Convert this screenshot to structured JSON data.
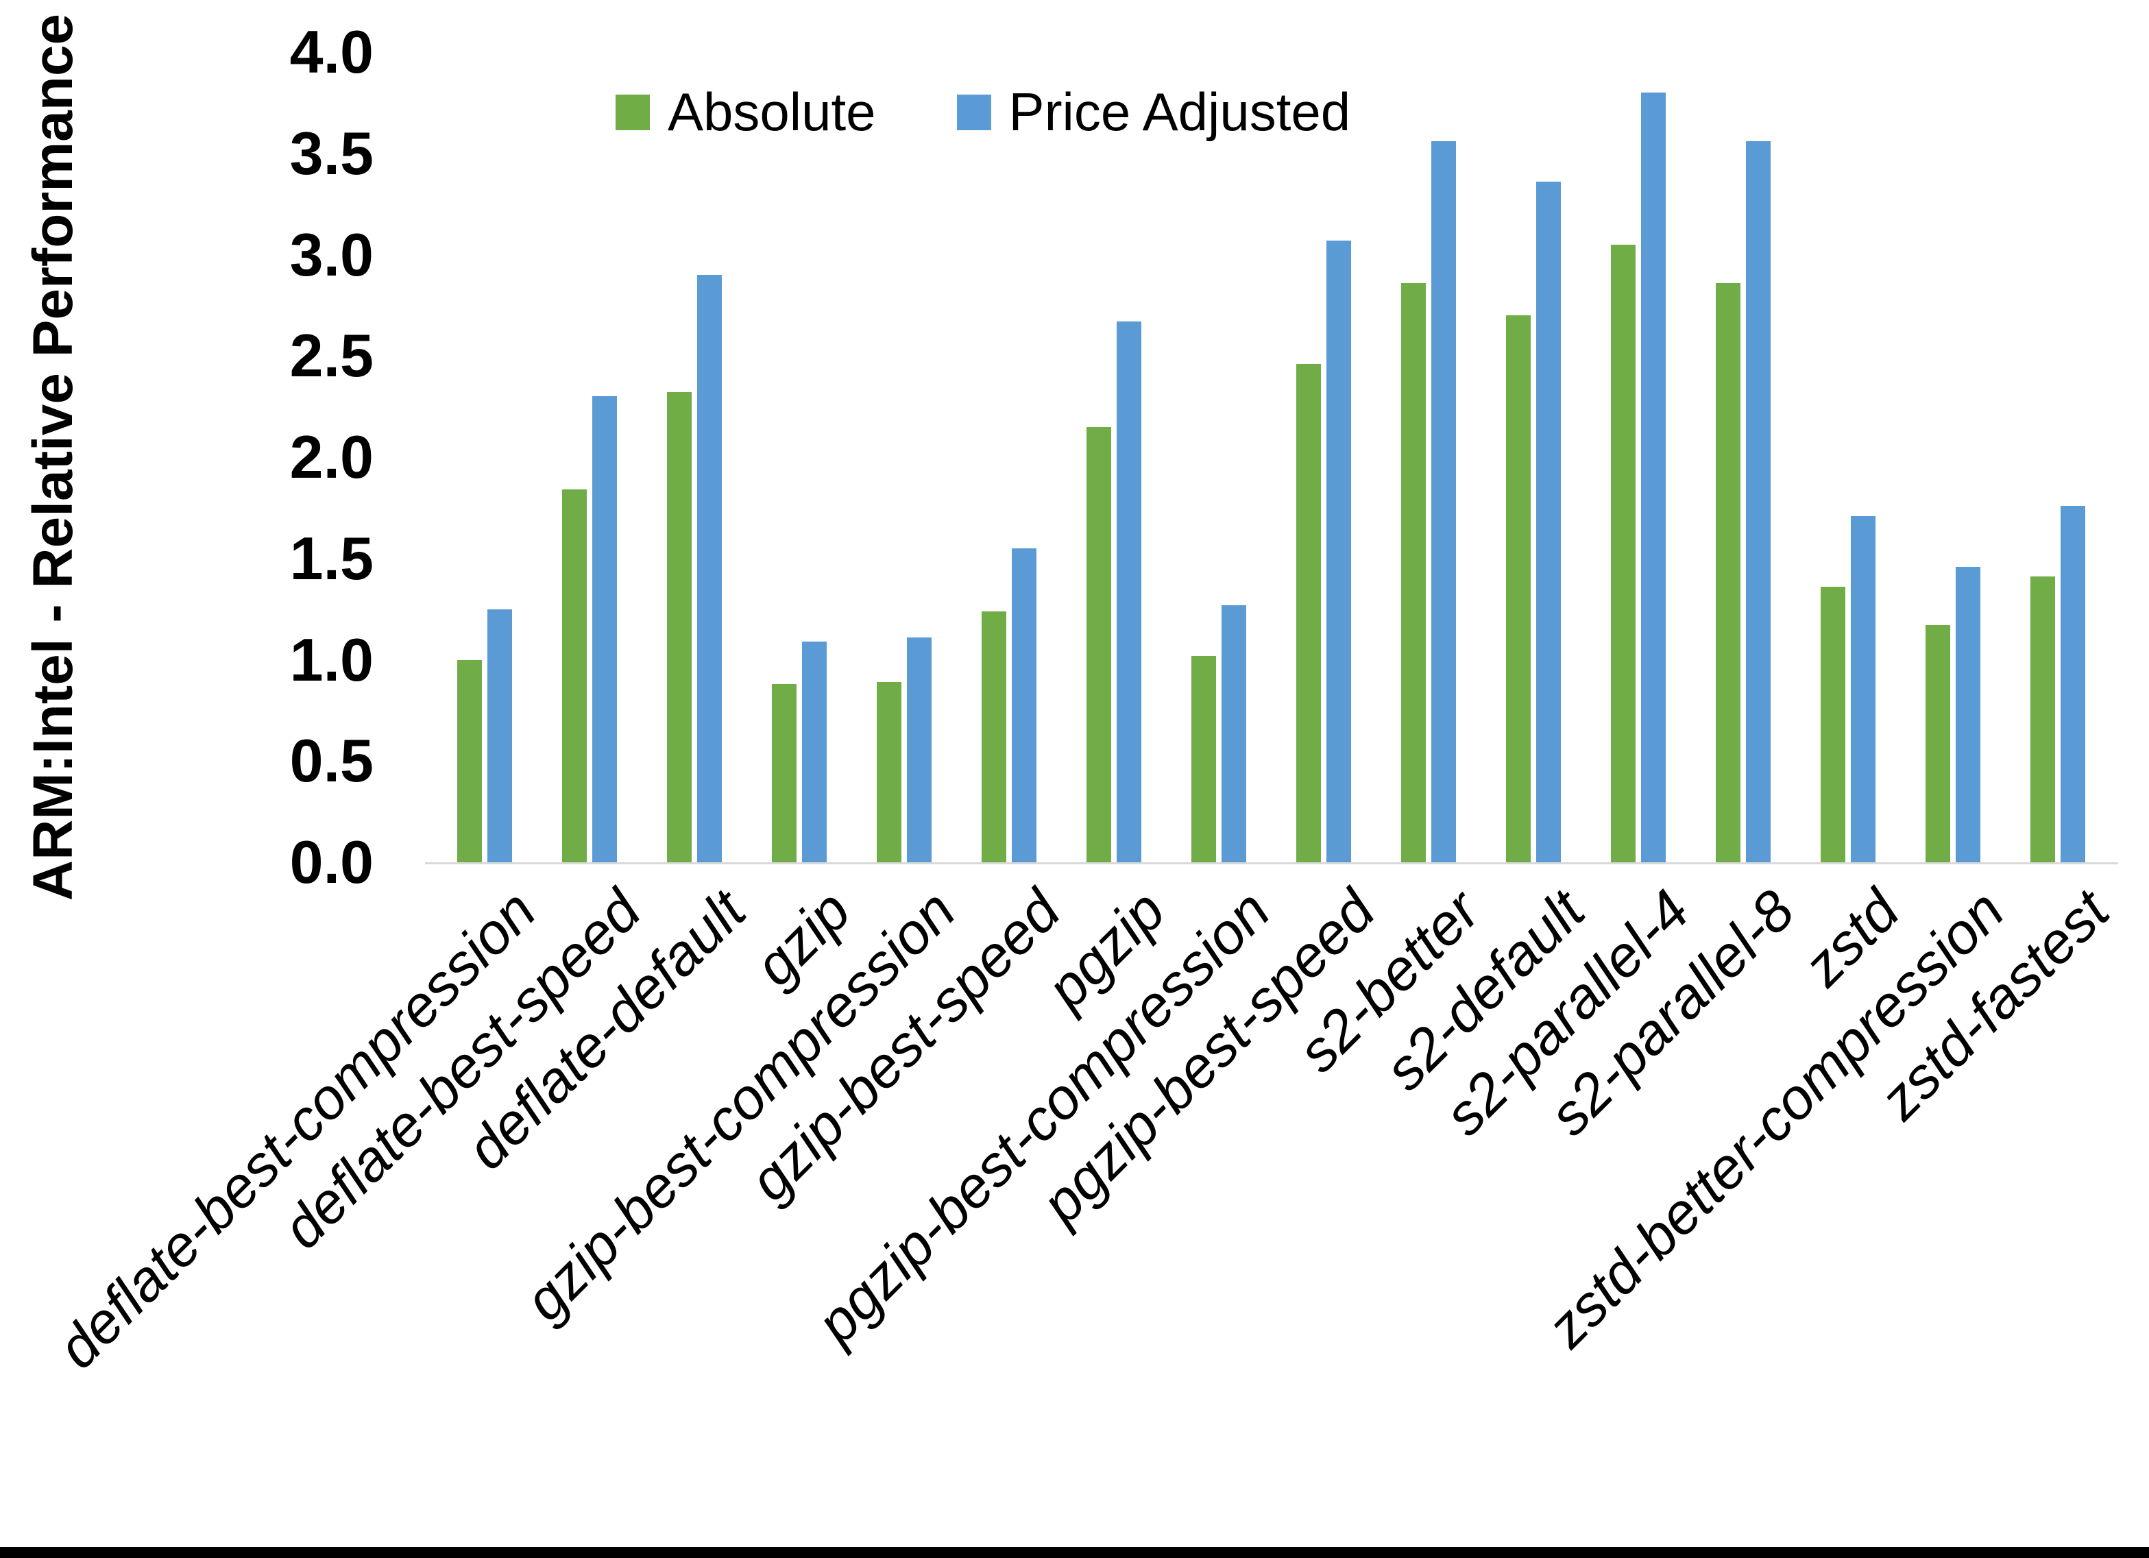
{
  "chart_data": {
    "type": "bar",
    "title": "",
    "xlabel": "",
    "ylabel": "ARM:Intel - Relative Performance",
    "ylim": [
      0.0,
      4.0
    ],
    "ytick_step": 0.5,
    "ytick_labels": [
      "0.0",
      "0.5",
      "1.0",
      "1.5",
      "2.0",
      "2.5",
      "3.0",
      "3.5",
      "4.0"
    ],
    "grid": false,
    "legend_position": "top-center",
    "categories": [
      "deflate-best-compression",
      "deflate-best-speed",
      "deflate-default",
      "gzip",
      "gzip-best-compression",
      "gzip-best-speed",
      "pgzip",
      "pgzip-best-compression",
      "pgzip-best-speed",
      "s2-better",
      "s2-default",
      "s2-parallel-4",
      "s2-parallel-8",
      "zstd",
      "zstd-better-compression",
      "zstd-fastest"
    ],
    "series": [
      {
        "name": "Absolute",
        "color": "#70AD47",
        "values": [
          1.0,
          1.84,
          2.32,
          0.88,
          0.89,
          1.24,
          2.15,
          1.02,
          2.46,
          2.86,
          2.7,
          3.05,
          2.86,
          1.36,
          1.17,
          1.41
        ]
      },
      {
        "name": "Price Adjusted",
        "color": "#5B9BD5",
        "values": [
          1.25,
          2.3,
          2.9,
          1.09,
          1.11,
          1.55,
          2.67,
          1.27,
          3.07,
          3.56,
          3.36,
          3.8,
          3.56,
          1.71,
          1.46,
          1.76
        ]
      }
    ]
  },
  "colors": {
    "axis_line": "#d9d9d9",
    "text": "#000000",
    "bottom_border": "#000000"
  }
}
